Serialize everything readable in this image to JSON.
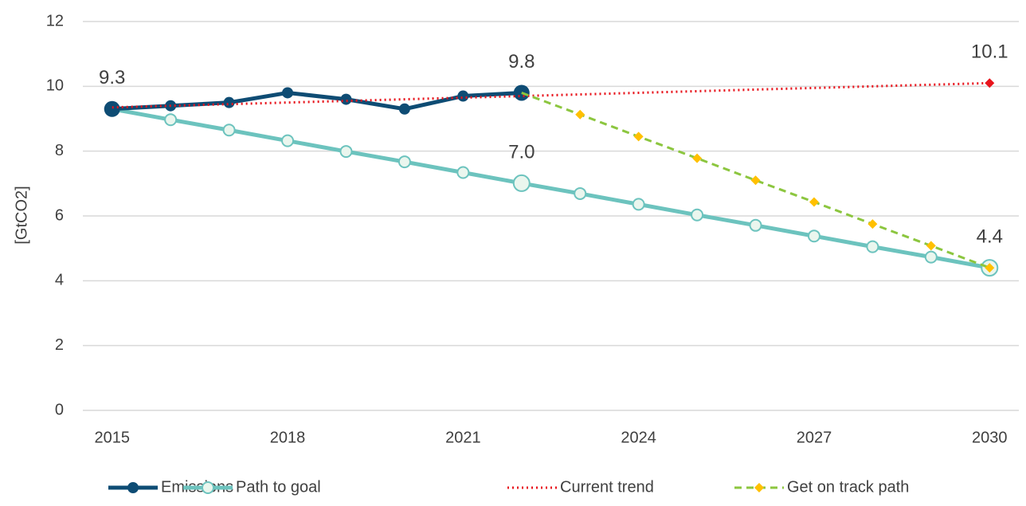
{
  "chart_data": {
    "type": "line",
    "y_label": "[GtCO2]",
    "x": [
      2015,
      2016,
      2017,
      2018,
      2019,
      2020,
      2021,
      2022,
      2023,
      2024,
      2025,
      2026,
      2027,
      2028,
      2029,
      2030
    ],
    "xlim": [
      2014.5,
      2030.5
    ],
    "xticks": [
      2015,
      2018,
      2021,
      2024,
      2027,
      2030
    ],
    "ylim": [
      0,
      12
    ],
    "yticks": [
      0,
      2,
      4,
      6,
      8,
      10,
      12
    ],
    "grid": true,
    "legend": "bottom",
    "series": [
      {
        "name": "Emissions",
        "color": "#0e4c74",
        "marker_color": "#0e4c74",
        "line_style": "solid",
        "marker": "circle",
        "values": [
          9.3,
          9.4,
          9.5,
          9.8,
          9.6,
          9.3,
          9.7,
          9.8,
          null,
          null,
          null,
          null,
          null,
          null,
          null,
          null
        ],
        "value_labels": [
          "9.3",
          null,
          null,
          null,
          null,
          null,
          null,
          "9.8",
          null,
          null,
          null,
          null,
          null,
          null,
          null,
          null
        ]
      },
      {
        "name": "Path to goal",
        "color": "#6cc3be",
        "marker_color": "#eaf6ee",
        "line_style": "solid",
        "marker": "open-circle",
        "values": [
          9.3,
          8.97,
          8.65,
          8.32,
          7.99,
          7.67,
          7.34,
          7.01,
          6.69,
          6.36,
          6.03,
          5.71,
          5.38,
          5.05,
          4.73,
          4.4
        ],
        "value_labels": [
          null,
          null,
          null,
          null,
          null,
          null,
          null,
          "7.0",
          null,
          null,
          null,
          null,
          null,
          null,
          null,
          "4.4"
        ]
      },
      {
        "name": "Current trend",
        "color": "#e8141c",
        "marker_color": "#e8141c",
        "line_style": "dotted",
        "marker": "end-diamond",
        "values": [
          9.35,
          9.4,
          9.45,
          9.5,
          9.55,
          9.6,
          9.65,
          9.7,
          9.75,
          9.8,
          9.85,
          9.9,
          9.95,
          10.0,
          10.05,
          10.1
        ],
        "value_labels": [
          null,
          null,
          null,
          null,
          null,
          null,
          null,
          null,
          null,
          null,
          null,
          null,
          null,
          null,
          null,
          "10.1"
        ]
      },
      {
        "name": "Get on track path",
        "color": "#8cc63f",
        "marker_color": "#ffc000",
        "line_style": "dashed",
        "marker": "diamond",
        "values": [
          null,
          null,
          null,
          null,
          null,
          null,
          null,
          9.8,
          9.13,
          8.45,
          7.78,
          7.1,
          6.43,
          5.75,
          5.08,
          4.4
        ]
      }
    ]
  }
}
